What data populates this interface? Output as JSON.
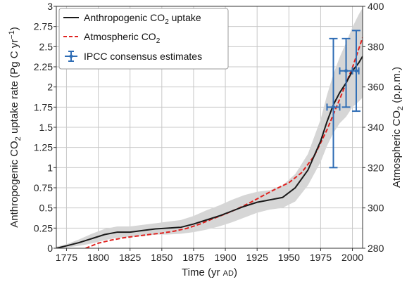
{
  "chart_data": {
    "type": "line",
    "xlabel": {
      "main": "Time (yr ",
      "small": "AD",
      "close": ")"
    },
    "ylabel_left": {
      "pre": "Anthropogenic CO",
      "sub": "2",
      "post": " uptake rate (Pg C yr",
      "sup": "−1",
      "end": ")"
    },
    "ylabel_right": {
      "pre": "Atmospheric CO",
      "sub": "2",
      "post": " (p.p.m.)"
    },
    "xlim": [
      1767,
      2008
    ],
    "ylim_left": [
      0,
      3
    ],
    "ylim_right": [
      280,
      400
    ],
    "x_ticks": [
      "1775",
      "1800",
      "1825",
      "1850",
      "1875",
      "1900",
      "1925",
      "1950",
      "1975",
      "2000"
    ],
    "y_ticks_left": [
      "0",
      "0.25",
      "0.5",
      "0.75",
      "1",
      "1.25",
      "1.5",
      "1.75",
      "2",
      "2.25",
      "2.5",
      "2.75",
      "3"
    ],
    "y_ticks_right": [
      "280",
      "300",
      "320",
      "340",
      "360",
      "380",
      "400"
    ],
    "legend": [
      {
        "pre": "Anthropogenic CO",
        "sub": "2",
        "post": " uptake"
      },
      {
        "pre": "Atmospheric CO",
        "sub": "2",
        "post": ""
      },
      {
        "pre": "IPCC consensus estimates",
        "sub": "",
        "post": ""
      }
    ],
    "series": [
      {
        "axis": "left",
        "x": [
          1767,
          1775,
          1785,
          1795,
          1805,
          1815,
          1825,
          1835,
          1845,
          1855,
          1865,
          1875,
          1885,
          1895,
          1905,
          1915,
          1925,
          1935,
          1945,
          1955,
          1965,
          1975,
          1980,
          1985,
          1990,
          1995,
          2000,
          2005,
          2008
        ],
        "y": [
          0.0,
          0.03,
          0.07,
          0.12,
          0.17,
          0.2,
          0.2,
          0.22,
          0.24,
          0.25,
          0.26,
          0.3,
          0.35,
          0.4,
          0.46,
          0.52,
          0.57,
          0.6,
          0.63,
          0.75,
          0.97,
          1.33,
          1.57,
          1.78,
          1.93,
          2.05,
          2.2,
          2.3,
          2.38
        ],
        "upper": [
          0.02,
          0.05,
          0.11,
          0.18,
          0.24,
          0.27,
          0.27,
          0.29,
          0.31,
          0.33,
          0.35,
          0.4,
          0.47,
          0.53,
          0.6,
          0.66,
          0.7,
          0.72,
          0.78,
          0.92,
          1.17,
          1.6,
          1.9,
          2.16,
          2.37,
          2.55,
          2.74,
          2.9,
          2.98
        ],
        "lower": [
          0.0,
          0.01,
          0.03,
          0.06,
          0.1,
          0.13,
          0.14,
          0.15,
          0.17,
          0.17,
          0.18,
          0.2,
          0.23,
          0.27,
          0.32,
          0.38,
          0.44,
          0.48,
          0.5,
          0.58,
          0.78,
          1.07,
          1.27,
          1.43,
          1.55,
          1.63,
          1.75,
          1.82,
          1.87
        ]
      },
      {
        "axis": "right",
        "x": [
          1790,
          1800,
          1810,
          1820,
          1830,
          1840,
          1850,
          1860,
          1870,
          1880,
          1890,
          1900,
          1910,
          1920,
          1930,
          1940,
          1950,
          1960,
          1970,
          1980,
          1990,
          2000,
          2008
        ],
        "y": [
          280,
          282.5,
          284,
          285.2,
          286,
          286.8,
          287.5,
          288.5,
          289.9,
          292,
          294.6,
          297,
          299.7,
          302.8,
          306.2,
          309.5,
          312.5,
          317.5,
          325.8,
          338.8,
          354,
          369.6,
          384.5
        ]
      }
    ],
    "ipcc_estimates": [
      {
        "x": 1985,
        "y": 1.75,
        "x_err": [
          1980,
          1990
        ],
        "y_err": [
          1.0,
          2.6
        ]
      },
      {
        "x": 1995,
        "y": 2.2,
        "x_err": [
          1990,
          2000
        ],
        "y_err": [
          1.75,
          2.6
        ]
      },
      {
        "x": 2003,
        "y": 2.2,
        "x_err": [
          2000,
          2005
        ],
        "y_err": [
          1.7,
          2.7
        ]
      }
    ],
    "colors": {
      "uptake": "#1a1a1a",
      "atmospheric": "#e0221f",
      "ipcc": "#2f6db5",
      "band": "#d6d6d6",
      "grid": "#c8c8c8"
    },
    "grid": true,
    "legend_position": "top-left"
  }
}
